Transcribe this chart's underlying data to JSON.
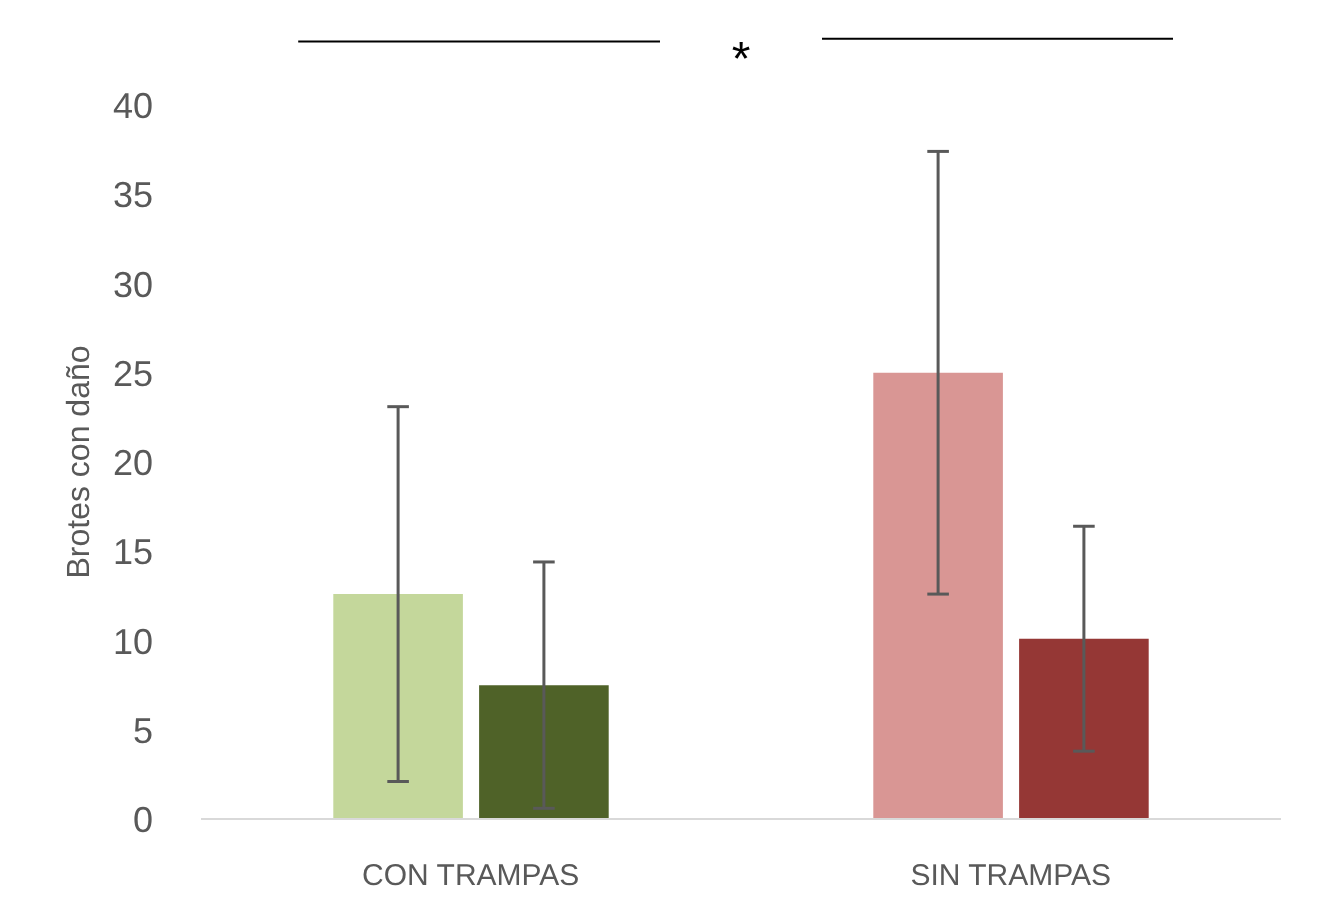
{
  "chart_data": {
    "type": "bar",
    "ylabel": "Brotes con daño",
    "categories": [
      "CON TRAMPAS",
      "SIN TRAMPAS"
    ],
    "series": [
      {
        "colors": [
          "#c4d79b",
          "#d99694"
        ],
        "values": [
          12.6,
          25.0
        ],
        "errors": [
          10.5,
          12.4
        ]
      },
      {
        "colors": [
          "#4f6228",
          "#953735"
        ],
        "values": [
          7.5,
          10.1
        ],
        "errors": [
          6.9,
          6.3
        ]
      }
    ],
    "ylim": [
      0,
      40
    ],
    "yticks": [
      0,
      5,
      10,
      15,
      20,
      25,
      30,
      35,
      40
    ],
    "annotations": [
      "*"
    ]
  }
}
